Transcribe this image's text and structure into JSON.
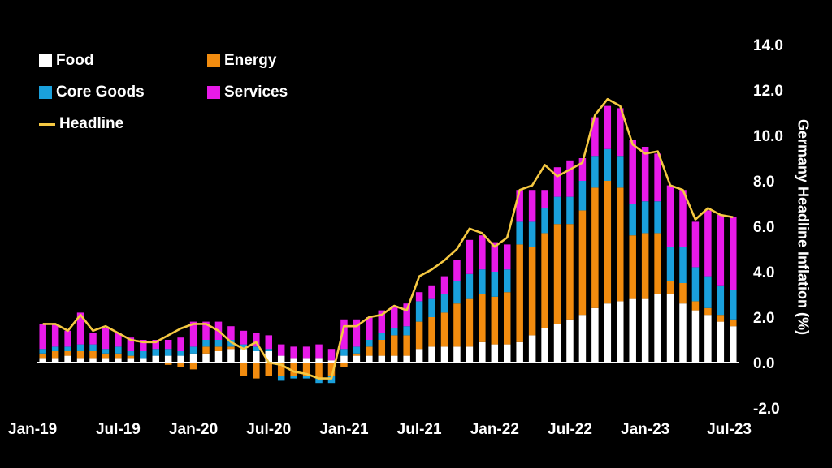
{
  "chart_data": {
    "type": "bar",
    "subtype": "stacked bar with line overlay",
    "ylabel": "Germany Headline Inflation (%)",
    "ylim": [
      -2.0,
      14.0
    ],
    "yticks": [
      "-2.0",
      "0.0",
      "2.0",
      "4.0",
      "6.0",
      "8.0",
      "10.0",
      "12.0",
      "14.0"
    ],
    "xtick_labels": [
      "Jan-19",
      "Jul-19",
      "Jan-20",
      "Jul-20",
      "Jan-21",
      "Jul-21",
      "Jan-22",
      "Jul-22",
      "Jan-23",
      "Jul-23"
    ],
    "legend_position": "top-left",
    "colors": {
      "Food": "#ffffff",
      "Energy": "#f28c0f",
      "Core Goods": "#1aa0dc",
      "Services": "#e81ae8",
      "Headline": "#f5c842",
      "background": "#000000",
      "axis": "#ffffff"
    },
    "x": [
      "Jan-19",
      "Feb-19",
      "Mar-19",
      "Apr-19",
      "May-19",
      "Jun-19",
      "Jul-19",
      "Aug-19",
      "Sep-19",
      "Oct-19",
      "Nov-19",
      "Dec-19",
      "Jan-20",
      "Feb-20",
      "Mar-20",
      "Apr-20",
      "May-20",
      "Jun-20",
      "Jul-20",
      "Aug-20",
      "Sep-20",
      "Oct-20",
      "Nov-20",
      "Dec-20",
      "Jan-21",
      "Feb-21",
      "Mar-21",
      "Apr-21",
      "May-21",
      "Jun-21",
      "Jul-21",
      "Aug-21",
      "Sep-21",
      "Oct-21",
      "Nov-21",
      "Dec-21",
      "Jan-22",
      "Feb-22",
      "Mar-22",
      "Apr-22",
      "May-22",
      "Jun-22",
      "Jul-22",
      "Aug-22",
      "Sep-22",
      "Oct-22",
      "Nov-22",
      "Dec-22",
      "Jan-23",
      "Feb-23",
      "Mar-23",
      "Apr-23",
      "May-23",
      "Jun-23",
      "Jul-23",
      "Aug-23"
    ],
    "series": [
      {
        "name": "Food",
        "values": [
          0.2,
          0.2,
          0.3,
          0.2,
          0.2,
          0.2,
          0.2,
          0.2,
          0.2,
          0.3,
          0.3,
          0.3,
          0.4,
          0.4,
          0.5,
          0.6,
          0.6,
          0.5,
          0.5,
          0.3,
          0.2,
          0.2,
          0.2,
          0.1,
          0.3,
          0.3,
          0.3,
          0.3,
          0.3,
          0.3,
          0.6,
          0.7,
          0.7,
          0.7,
          0.7,
          0.9,
          0.8,
          0.8,
          0.9,
          1.2,
          1.5,
          1.7,
          1.9,
          2.1,
          2.4,
          2.6,
          2.7,
          2.8,
          2.8,
          3.0,
          3.0,
          2.6,
          2.3,
          2.1,
          1.8,
          1.6
        ]
      },
      {
        "name": "Energy",
        "values": [
          0.2,
          0.3,
          0.2,
          0.3,
          0.3,
          0.2,
          0.2,
          0.1,
          0.0,
          0.0,
          -0.1,
          -0.2,
          -0.3,
          0.3,
          0.2,
          0.1,
          -0.6,
          -0.7,
          -0.6,
          -0.6,
          -0.6,
          -0.6,
          -0.7,
          -0.6,
          -0.2,
          0.1,
          0.4,
          0.7,
          0.9,
          0.9,
          1.2,
          1.3,
          1.5,
          1.9,
          2.1,
          2.1,
          2.1,
          2.3,
          4.3,
          3.9,
          4.2,
          4.4,
          4.2,
          4.6,
          5.3,
          5.4,
          5.0,
          2.8,
          2.9,
          2.7,
          0.6,
          0.9,
          0.4,
          0.3,
          0.3,
          0.3
        ]
      },
      {
        "name": "Core Goods",
        "values": [
          0.2,
          0.2,
          0.2,
          0.3,
          0.3,
          0.2,
          0.3,
          0.2,
          0.3,
          0.3,
          0.3,
          0.2,
          0.3,
          0.3,
          0.3,
          0.3,
          0.2,
          0.2,
          0.1,
          -0.2,
          -0.1,
          -0.1,
          -0.2,
          -0.3,
          0.3,
          0.3,
          0.3,
          0.3,
          0.3,
          0.4,
          0.9,
          0.8,
          0.8,
          1.0,
          1.1,
          1.1,
          1.1,
          1.0,
          1.0,
          1.1,
          1.1,
          1.2,
          1.2,
          1.3,
          1.4,
          1.4,
          1.4,
          1.4,
          1.4,
          1.4,
          1.5,
          1.6,
          1.5,
          1.4,
          1.3,
          1.3
        ]
      },
      {
        "name": "Services",
        "values": [
          1.1,
          1.0,
          0.7,
          1.4,
          0.5,
          0.9,
          0.6,
          0.6,
          0.5,
          0.4,
          0.4,
          0.6,
          1.1,
          0.8,
          0.8,
          0.6,
          0.6,
          0.6,
          0.6,
          0.5,
          0.5,
          0.5,
          0.6,
          0.5,
          1.3,
          1.2,
          1.0,
          1.0,
          1.0,
          1.0,
          0.4,
          0.6,
          0.8,
          0.9,
          1.5,
          1.5,
          1.3,
          1.1,
          1.4,
          1.4,
          0.8,
          1.3,
          1.6,
          1.0,
          1.7,
          1.9,
          2.1,
          2.8,
          2.4,
          2.1,
          2.7,
          2.5,
          2.0,
          2.9,
          3.1,
          3.2
        ]
      },
      {
        "name": "Headline",
        "type": "line",
        "values": [
          1.7,
          1.7,
          1.4,
          2.1,
          1.4,
          1.6,
          1.3,
          1.0,
          0.9,
          0.9,
          1.2,
          1.5,
          1.7,
          1.7,
          1.4,
          0.9,
          0.6,
          0.9,
          0.0,
          -0.1,
          -0.4,
          -0.5,
          -0.7,
          -0.7,
          1.6,
          1.6,
          2.0,
          2.1,
          2.5,
          2.3,
          3.8,
          4.1,
          4.5,
          5.0,
          5.9,
          5.7,
          5.1,
          5.5,
          7.6,
          7.8,
          8.7,
          8.2,
          8.5,
          8.8,
          10.9,
          11.6,
          11.3,
          9.6,
          9.2,
          9.3,
          7.8,
          7.6,
          6.3,
          6.8,
          6.5,
          6.4
        ]
      }
    ]
  }
}
